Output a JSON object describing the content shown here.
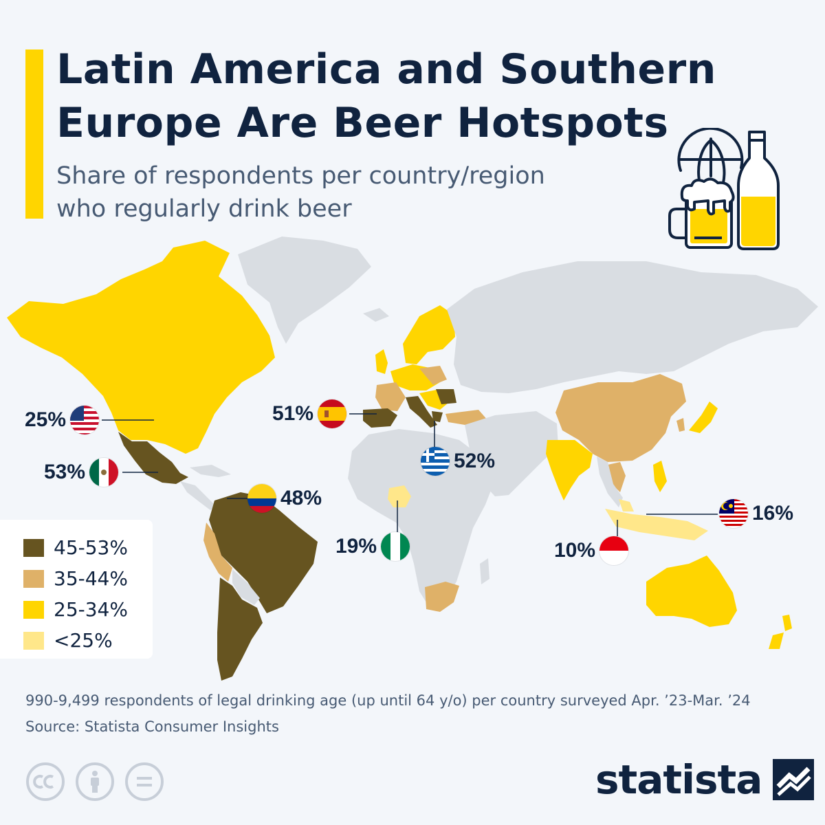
{
  "header": {
    "title_line1": "Latin America and Southern",
    "title_line2": "Europe Are Beer Hotspots",
    "subtitle_line1": "Share of respondents per country/region",
    "subtitle_line2": "who regularly drink beer"
  },
  "colors": {
    "bin_45_53": "#665420",
    "bin_35_44": "#dfb168",
    "bin_25_34": "#ffd500",
    "bin_under_25": "#ffe78a",
    "no_data": "#d9dde2",
    "title": "#10233f",
    "accent": "#ffd500"
  },
  "legend": {
    "items": [
      {
        "label": "45-53%",
        "color": "#665420"
      },
      {
        "label": "35-44%",
        "color": "#dfb168"
      },
      {
        "label": "25-34%",
        "color": "#ffd500"
      },
      {
        "label": "<25%",
        "color": "#ffe78a"
      }
    ]
  },
  "callouts": {
    "usa": {
      "value": "25%",
      "flag": "usa-flag-icon"
    },
    "mexico": {
      "value": "53%",
      "flag": "mexico-flag-icon"
    },
    "spain": {
      "value": "51%",
      "flag": "spain-flag-icon"
    },
    "greece": {
      "value": "52%",
      "flag": "greece-flag-icon"
    },
    "colombia": {
      "value": "48%",
      "flag": "colombia-flag-icon"
    },
    "nigeria": {
      "value": "19%",
      "flag": "nigeria-flag-icon"
    },
    "indonesia": {
      "value": "10%",
      "flag": "indonesia-flag-icon"
    },
    "malaysia": {
      "value": "16%",
      "flag": "malaysia-flag-icon"
    }
  },
  "footer": {
    "note": "990-9,499 respondents of legal drinking age (up until 64 y/o) per country surveyed Apr. ’23-Mar. ’24",
    "source": "Source: Statista Consumer Insights",
    "brand": "statista"
  }
}
